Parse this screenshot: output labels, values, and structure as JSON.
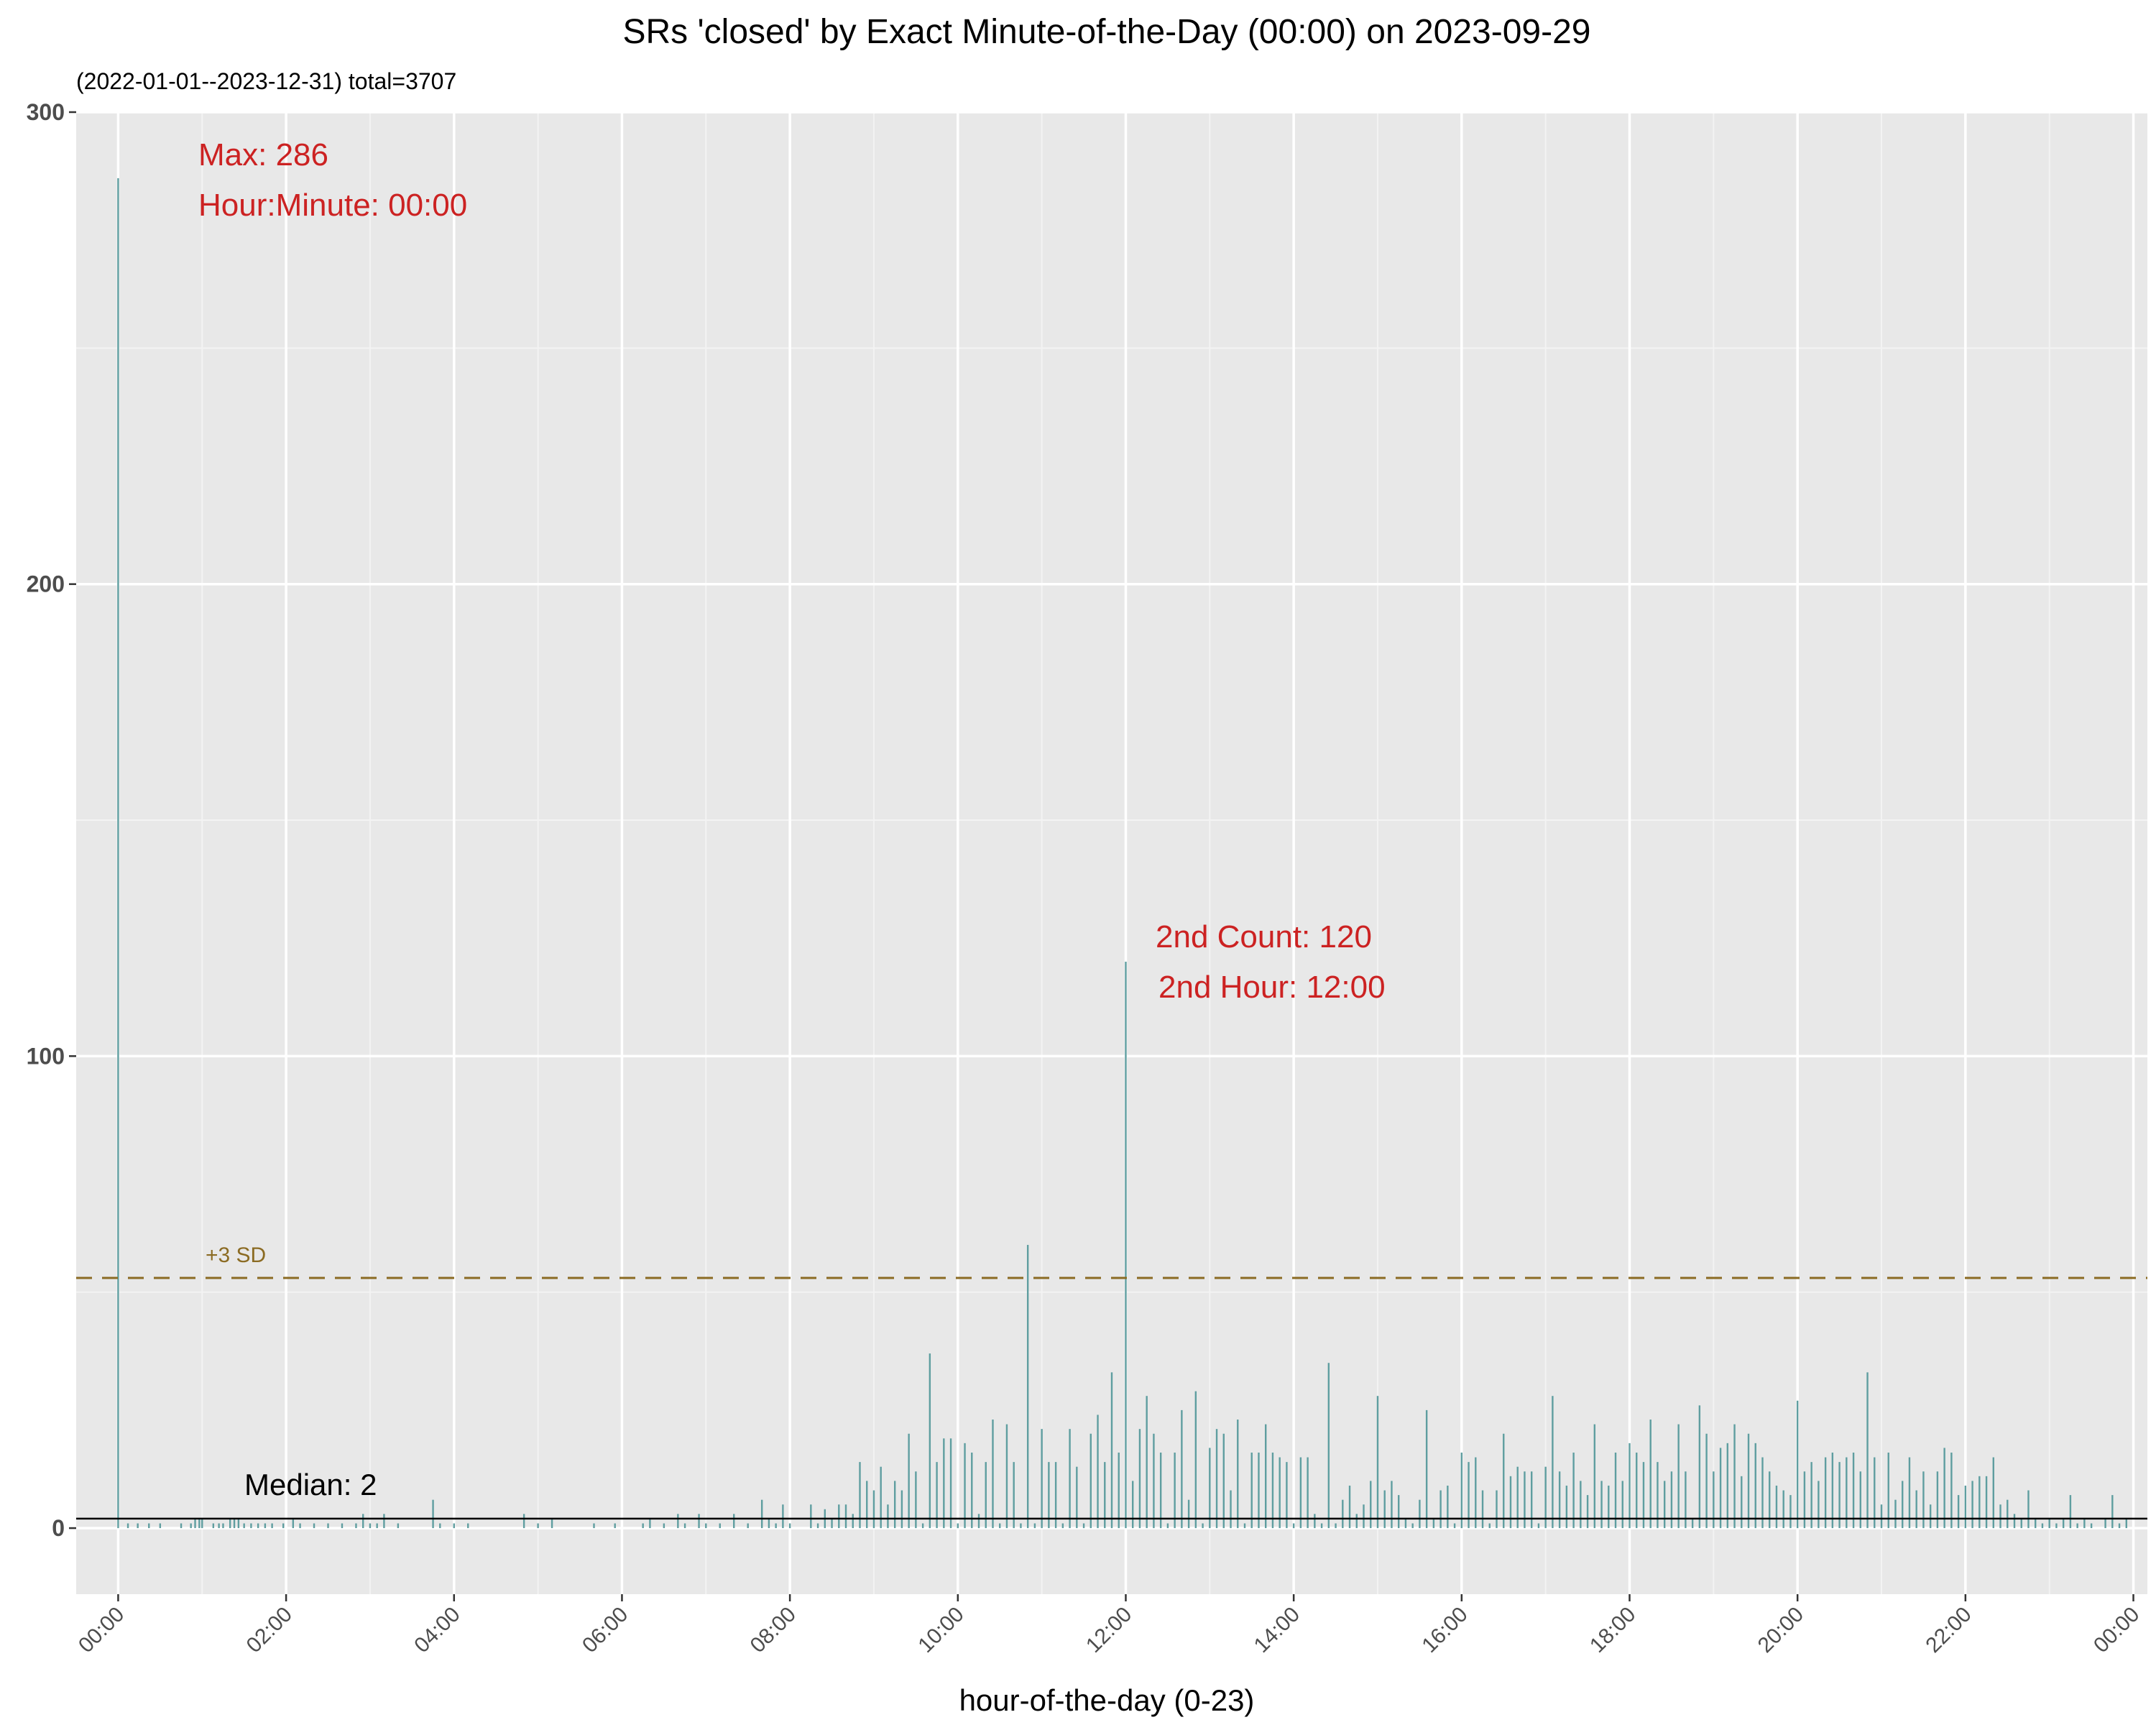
{
  "chart_data": {
    "type": "bar",
    "title": "SRs 'closed' by Exact Minute-of-the-Day (00:00) on 2023-09-29",
    "subtitle": "(2022-01-01--2023-12-31) total=3707",
    "xlabel": "hour-of-the-day (0-23)",
    "ylabel": "",
    "ylim": [
      -14,
      300
    ],
    "yticks": [
      0,
      100,
      200,
      300
    ],
    "xlim": [
      -30,
      1450
    ],
    "xticks": [
      {
        "minute": 0,
        "label": "00:00"
      },
      {
        "minute": 120,
        "label": "02:00"
      },
      {
        "minute": 240,
        "label": "04:00"
      },
      {
        "minute": 360,
        "label": "06:00"
      },
      {
        "minute": 480,
        "label": "08:00"
      },
      {
        "minute": 600,
        "label": "10:00"
      },
      {
        "minute": 720,
        "label": "12:00"
      },
      {
        "minute": 840,
        "label": "14:00"
      },
      {
        "minute": 960,
        "label": "16:00"
      },
      {
        "minute": 1080,
        "label": "18:00"
      },
      {
        "minute": 1200,
        "label": "20:00"
      },
      {
        "minute": 1320,
        "label": "22:00"
      },
      {
        "minute": 1440,
        "label": "00:00"
      }
    ],
    "bar_color": "#5f9ea0",
    "grid": true,
    "background": "#e8e8e8",
    "x_unit": "minute of day",
    "bars": [
      [
        0,
        286
      ],
      [
        7,
        1
      ],
      [
        14,
        1
      ],
      [
        22,
        1
      ],
      [
        30,
        1
      ],
      [
        45,
        1
      ],
      [
        52,
        1
      ],
      [
        55,
        2
      ],
      [
        58,
        2
      ],
      [
        60,
        2
      ],
      [
        68,
        1
      ],
      [
        72,
        1
      ],
      [
        75,
        1
      ],
      [
        80,
        2
      ],
      [
        83,
        2
      ],
      [
        86,
        2
      ],
      [
        90,
        1
      ],
      [
        95,
        1
      ],
      [
        100,
        1
      ],
      [
        105,
        1
      ],
      [
        110,
        1
      ],
      [
        118,
        1
      ],
      [
        125,
        2
      ],
      [
        130,
        1
      ],
      [
        140,
        1
      ],
      [
        150,
        1
      ],
      [
        160,
        1
      ],
      [
        170,
        1
      ],
      [
        175,
        3
      ],
      [
        180,
        1
      ],
      [
        185,
        1
      ],
      [
        190,
        3
      ],
      [
        200,
        1
      ],
      [
        225,
        6
      ],
      [
        230,
        1
      ],
      [
        240,
        1
      ],
      [
        250,
        1
      ],
      [
        290,
        3
      ],
      [
        300,
        1
      ],
      [
        310,
        2
      ],
      [
        340,
        1
      ],
      [
        355,
        1
      ],
      [
        375,
        1
      ],
      [
        380,
        2
      ],
      [
        390,
        1
      ],
      [
        400,
        3
      ],
      [
        405,
        1
      ],
      [
        415,
        3
      ],
      [
        420,
        1
      ],
      [
        430,
        1
      ],
      [
        440,
        3
      ],
      [
        450,
        1
      ],
      [
        460,
        6
      ],
      [
        465,
        2
      ],
      [
        470,
        1
      ],
      [
        475,
        5
      ],
      [
        480,
        1
      ],
      [
        495,
        5
      ],
      [
        500,
        1
      ],
      [
        505,
        4
      ],
      [
        510,
        2
      ],
      [
        515,
        5
      ],
      [
        520,
        5
      ],
      [
        525,
        3
      ],
      [
        530,
        14
      ],
      [
        535,
        10
      ],
      [
        540,
        8
      ],
      [
        545,
        13
      ],
      [
        550,
        5
      ],
      [
        555,
        10
      ],
      [
        560,
        8
      ],
      [
        565,
        20
      ],
      [
        570,
        12
      ],
      [
        575,
        1
      ],
      [
        580,
        37
      ],
      [
        585,
        14
      ],
      [
        590,
        19
      ],
      [
        595,
        19
      ],
      [
        600,
        1
      ],
      [
        605,
        18
      ],
      [
        610,
        16
      ],
      [
        615,
        3
      ],
      [
        620,
        14
      ],
      [
        625,
        23
      ],
      [
        630,
        1
      ],
      [
        635,
        22
      ],
      [
        640,
        14
      ],
      [
        645,
        1
      ],
      [
        650,
        60
      ],
      [
        655,
        1
      ],
      [
        660,
        21
      ],
      [
        665,
        14
      ],
      [
        670,
        14
      ],
      [
        675,
        1
      ],
      [
        680,
        21
      ],
      [
        685,
        13
      ],
      [
        690,
        1
      ],
      [
        695,
        20
      ],
      [
        700,
        24
      ],
      [
        705,
        14
      ],
      [
        710,
        33
      ],
      [
        715,
        16
      ],
      [
        720,
        120
      ],
      [
        725,
        10
      ],
      [
        730,
        21
      ],
      [
        735,
        28
      ],
      [
        740,
        20
      ],
      [
        745,
        16
      ],
      [
        750,
        1
      ],
      [
        755,
        16
      ],
      [
        760,
        25
      ],
      [
        765,
        6
      ],
      [
        770,
        29
      ],
      [
        775,
        1
      ],
      [
        780,
        17
      ],
      [
        785,
        21
      ],
      [
        790,
        20
      ],
      [
        795,
        8
      ],
      [
        800,
        23
      ],
      [
        805,
        1
      ],
      [
        810,
        16
      ],
      [
        815,
        16
      ],
      [
        820,
        22
      ],
      [
        825,
        16
      ],
      [
        830,
        15
      ],
      [
        835,
        14
      ],
      [
        840,
        1
      ],
      [
        845,
        15
      ],
      [
        850,
        15
      ],
      [
        855,
        3
      ],
      [
        860,
        1
      ],
      [
        865,
        35
      ],
      [
        870,
        1
      ],
      [
        875,
        6
      ],
      [
        880,
        9
      ],
      [
        885,
        3
      ],
      [
        890,
        5
      ],
      [
        895,
        10
      ],
      [
        900,
        28
      ],
      [
        905,
        8
      ],
      [
        910,
        10
      ],
      [
        915,
        7
      ],
      [
        920,
        2
      ],
      [
        925,
        1
      ],
      [
        930,
        6
      ],
      [
        935,
        25
      ],
      [
        940,
        2
      ],
      [
        945,
        8
      ],
      [
        950,
        9
      ],
      [
        955,
        1
      ],
      [
        960,
        16
      ],
      [
        965,
        14
      ],
      [
        970,
        15
      ],
      [
        975,
        8
      ],
      [
        980,
        1
      ],
      [
        985,
        8
      ],
      [
        990,
        20
      ],
      [
        995,
        11
      ],
      [
        1000,
        13
      ],
      [
        1005,
        12
      ],
      [
        1010,
        12
      ],
      [
        1015,
        1
      ],
      [
        1020,
        13
      ],
      [
        1025,
        28
      ],
      [
        1030,
        12
      ],
      [
        1035,
        9
      ],
      [
        1040,
        16
      ],
      [
        1045,
        10
      ],
      [
        1050,
        7
      ],
      [
        1055,
        22
      ],
      [
        1060,
        10
      ],
      [
        1065,
        9
      ],
      [
        1070,
        16
      ],
      [
        1075,
        10
      ],
      [
        1080,
        18
      ],
      [
        1085,
        16
      ],
      [
        1090,
        14
      ],
      [
        1095,
        23
      ],
      [
        1100,
        14
      ],
      [
        1105,
        10
      ],
      [
        1110,
        12
      ],
      [
        1115,
        22
      ],
      [
        1120,
        12
      ],
      [
        1125,
        2
      ],
      [
        1130,
        26
      ],
      [
        1135,
        20
      ],
      [
        1140,
        12
      ],
      [
        1145,
        17
      ],
      [
        1150,
        18
      ],
      [
        1155,
        22
      ],
      [
        1160,
        11
      ],
      [
        1165,
        20
      ],
      [
        1170,
        18
      ],
      [
        1175,
        15
      ],
      [
        1180,
        12
      ],
      [
        1185,
        9
      ],
      [
        1190,
        8
      ],
      [
        1195,
        7
      ],
      [
        1200,
        27
      ],
      [
        1205,
        12
      ],
      [
        1210,
        14
      ],
      [
        1215,
        10
      ],
      [
        1220,
        15
      ],
      [
        1225,
        16
      ],
      [
        1230,
        14
      ],
      [
        1235,
        15
      ],
      [
        1240,
        16
      ],
      [
        1245,
        12
      ],
      [
        1250,
        33
      ],
      [
        1255,
        15
      ],
      [
        1260,
        5
      ],
      [
        1265,
        16
      ],
      [
        1270,
        6
      ],
      [
        1275,
        10
      ],
      [
        1280,
        15
      ],
      [
        1285,
        8
      ],
      [
        1290,
        12
      ],
      [
        1295,
        5
      ],
      [
        1300,
        12
      ],
      [
        1305,
        17
      ],
      [
        1310,
        16
      ],
      [
        1315,
        7
      ],
      [
        1320,
        9
      ],
      [
        1325,
        10
      ],
      [
        1330,
        11
      ],
      [
        1335,
        11
      ],
      [
        1340,
        15
      ],
      [
        1345,
        5
      ],
      [
        1350,
        6
      ],
      [
        1355,
        3
      ],
      [
        1360,
        2
      ],
      [
        1365,
        8
      ],
      [
        1370,
        2
      ],
      [
        1375,
        1
      ],
      [
        1380,
        2
      ],
      [
        1385,
        1
      ],
      [
        1390,
        2
      ],
      [
        1395,
        7
      ],
      [
        1400,
        1
      ],
      [
        1405,
        2
      ],
      [
        1410,
        1
      ],
      [
        1420,
        2
      ],
      [
        1425,
        7
      ],
      [
        1430,
        1
      ],
      [
        1435,
        2
      ]
    ],
    "reference_lines": {
      "median": {
        "value": 2,
        "label": "Median: 2",
        "color": "#000000"
      },
      "sd3": {
        "value": 53,
        "label": "+3 SD",
        "color": "#8b6b23"
      }
    },
    "annotations": {
      "max_line1": "Max: 286",
      "max_line2": "Hour:Minute: 00:00",
      "second_line1": "2nd Count: 120",
      "second_line2": "2nd Hour: 12:00"
    }
  }
}
